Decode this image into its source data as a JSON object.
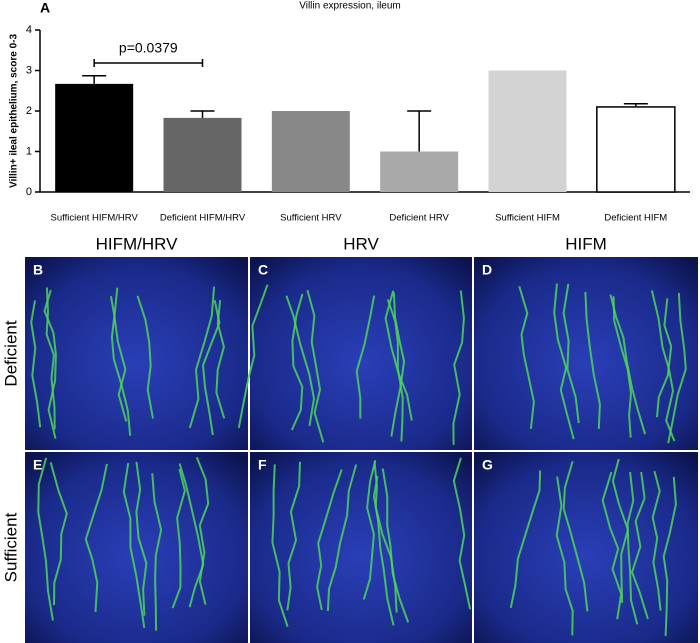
{
  "chart_data": {
    "type": "bar",
    "panel_label": "A",
    "title": "Villin expression, ileum",
    "y_label": "Villin+ ileal epithelium, score 0-3",
    "categories": [
      "Sufficient HIFM/HRV",
      "Deficient HIFM/HRV",
      "Sufficient HRV",
      "Deficient HRV",
      "Sufficient HIFM",
      "Deficient HIFM"
    ],
    "values": [
      2.67,
      1.83,
      2.0,
      1.0,
      3.0,
      2.1
    ],
    "errors": [
      0.2,
      0.17,
      0,
      1.0,
      0,
      0.08
    ],
    "colors": [
      "#000000",
      "#666666",
      "#888888",
      "#a9a9a9",
      "#d3d3d3",
      "#ffffff"
    ],
    "annotation": "p=0.0379",
    "ylim": [
      0,
      4
    ],
    "yticks": [
      0,
      1,
      2,
      3,
      4
    ]
  },
  "columns": [
    "HIFM/HRV",
    "HRV",
    "HIFM"
  ],
  "rows": [
    "Deficient",
    "Sufficient"
  ],
  "panels": [
    "B",
    "C",
    "D",
    "E",
    "F",
    "G"
  ]
}
